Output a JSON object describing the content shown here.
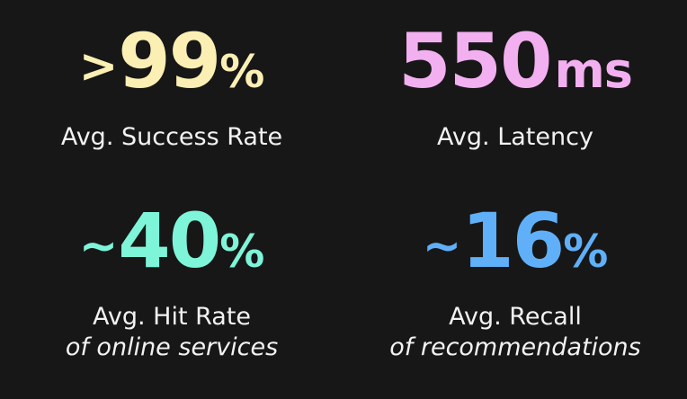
{
  "stats": [
    {
      "prefix": ">",
      "number": "99",
      "suffix": "%",
      "label": "Avg. Success Rate",
      "sublabel": "",
      "color": "#fcefb4"
    },
    {
      "prefix": "",
      "number": "550",
      "suffix": "ms",
      "label": "Avg. Latency",
      "sublabel": "",
      "color": "#f2b0f0"
    },
    {
      "prefix": "~",
      "number": "40",
      "suffix": "%",
      "label": "Avg. Hit Rate",
      "sublabel": "of online services",
      "color": "#7ef5d9"
    },
    {
      "prefix": "~",
      "number": "16",
      "suffix": "%",
      "label": "Avg. Recall",
      "sublabel": "of recommendations",
      "color": "#5fb0f8"
    }
  ]
}
